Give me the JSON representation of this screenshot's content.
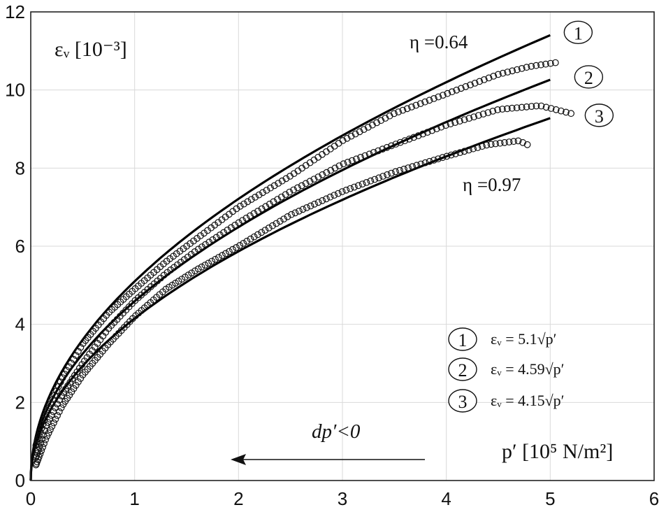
{
  "chart_data": {
    "type": "scatter",
    "xlim": [
      0,
      6
    ],
    "ylim": [
      0,
      12
    ],
    "x_ticks": [
      0,
      1,
      2,
      3,
      4,
      5,
      6
    ],
    "y_ticks": [
      0,
      2,
      4,
      6,
      8,
      10,
      12
    ],
    "grid": true,
    "ylabel": "εᵥ [10⁻³]",
    "xlabel": "p′ [10⁵ N/m²]",
    "series": [
      {
        "id": "1",
        "fit_coefficient": 5.1,
        "fit_x_max": 5.0,
        "points": [
          [
            0.05,
            0.9
          ],
          [
            0.15,
            1.7
          ],
          [
            0.3,
            2.6
          ],
          [
            0.5,
            3.5
          ],
          [
            0.75,
            4.3
          ],
          [
            1.0,
            4.9
          ],
          [
            1.3,
            5.6
          ],
          [
            1.6,
            6.2
          ],
          [
            2.0,
            7.0
          ],
          [
            2.5,
            7.8
          ],
          [
            3.0,
            8.7
          ],
          [
            3.5,
            9.4
          ],
          [
            4.0,
            9.9
          ],
          [
            4.5,
            10.4
          ],
          [
            4.8,
            10.6
          ],
          [
            5.05,
            10.7
          ]
        ]
      },
      {
        "id": "2",
        "fit_coefficient": 4.59,
        "fit_x_max": 5.0,
        "points": [
          [
            0.05,
            0.6
          ],
          [
            0.15,
            1.4
          ],
          [
            0.3,
            2.2
          ],
          [
            0.5,
            3.0
          ],
          [
            0.75,
            3.9
          ],
          [
            1.0,
            4.6
          ],
          [
            1.3,
            5.3
          ],
          [
            1.6,
            5.9
          ],
          [
            2.0,
            6.6
          ],
          [
            2.5,
            7.4
          ],
          [
            3.0,
            8.1
          ],
          [
            3.5,
            8.6
          ],
          [
            4.0,
            9.1
          ],
          [
            4.5,
            9.5
          ],
          [
            4.9,
            9.6
          ],
          [
            5.2,
            9.4
          ]
        ]
      },
      {
        "id": "3",
        "fit_coefficient": 4.15,
        "fit_x_max": 5.0,
        "points": [
          [
            0.05,
            0.4
          ],
          [
            0.15,
            1.1
          ],
          [
            0.3,
            1.9
          ],
          [
            0.5,
            2.7
          ],
          [
            0.75,
            3.5
          ],
          [
            1.0,
            4.2
          ],
          [
            1.3,
            4.9
          ],
          [
            1.6,
            5.4
          ],
          [
            2.0,
            6.0
          ],
          [
            2.5,
            6.8
          ],
          [
            3.0,
            7.4
          ],
          [
            3.5,
            7.9
          ],
          [
            4.0,
            8.3
          ],
          [
            4.4,
            8.6
          ],
          [
            4.7,
            8.7
          ],
          [
            4.78,
            8.6
          ]
        ]
      }
    ],
    "annotations": {
      "eta_top": "η =0.64",
      "eta_bottom": "η =0.97",
      "direction": "dp′<0",
      "legend": [
        {
          "id": "1",
          "formula": "εᵥ = 5.1√p′"
        },
        {
          "id": "2",
          "formula": "εᵥ = 4.59√p′"
        },
        {
          "id": "3",
          "formula": "εᵥ = 4.15√p′"
        }
      ]
    }
  }
}
